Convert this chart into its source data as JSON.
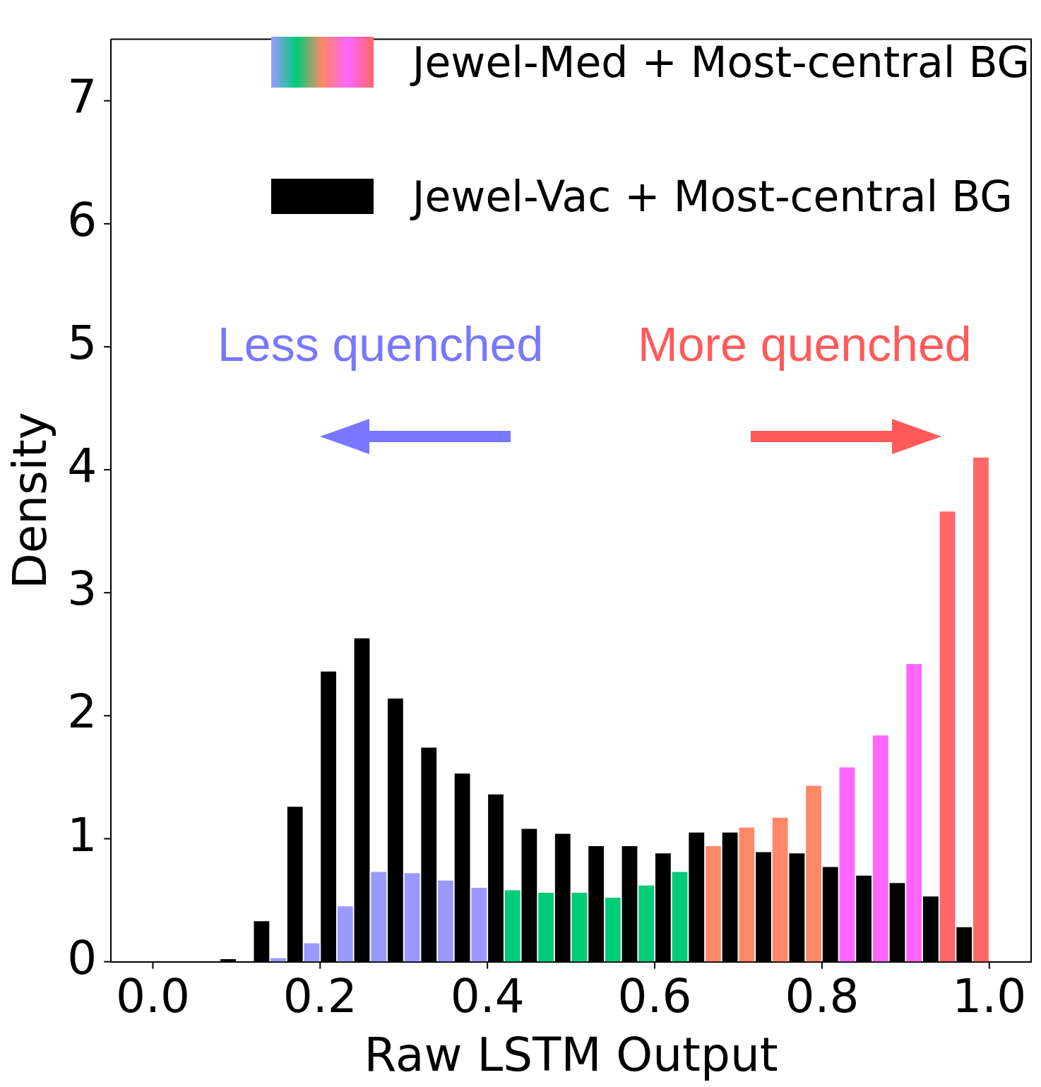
{
  "chart_data": {
    "type": "histogram",
    "xlabel": "Raw LSTM Output",
    "ylabel": "Density",
    "bins": [
      0,
      0.04,
      0.08,
      0.12,
      0.16,
      0.2,
      0.24,
      0.28,
      0.32,
      0.36,
      0.4,
      0.44,
      0.48,
      0.52,
      0.56,
      0.6,
      0.64,
      0.68,
      0.72,
      0.76,
      0.8,
      0.84,
      0.88,
      0.92,
      0.96,
      1.0
    ],
    "series": [
      {
        "name": "Jewel-Vac + Most-central BG",
        "color": "#000000",
        "values": [
          0,
          0,
          0.02,
          0.33,
          1.26,
          2.36,
          2.63,
          2.14,
          1.74,
          1.53,
          1.36,
          1.08,
          1.04,
          0.94,
          0.94,
          0.88,
          1.05,
          1.05,
          0.89,
          0.88,
          0.77,
          0.7,
          0.64,
          0.53,
          0.28
        ]
      },
      {
        "name": "Jewel-Med + Most-central BG",
        "colors": [
          "#9999ff",
          "#9999ff",
          "#9999ff",
          "#9999ff",
          "#9999ff",
          "#9999ff",
          "#9999ff",
          "#9999ff",
          "#9999ff",
          "#9999ff",
          "#00cc77",
          "#00cc77",
          "#00cc77",
          "#00cc77",
          "#00cc77",
          "#00cc77",
          "#ff8866",
          "#ff8866",
          "#ff8866",
          "#ff8866",
          "#ff66ff",
          "#ff66ff",
          "#ff66ff",
          "#ff6666",
          "#ff6666"
        ],
        "values": [
          0,
          0,
          0,
          0.03,
          0.15,
          0.45,
          0.73,
          0.72,
          0.66,
          0.6,
          0.58,
          0.56,
          0.56,
          0.52,
          0.62,
          0.73,
          0.94,
          1.09,
          1.17,
          1.43,
          1.58,
          1.84,
          2.42,
          3.66,
          4.1
        ]
      }
    ],
    "xlim": [
      -0.05,
      1.05
    ],
    "xticks": [
      {
        "value": 0,
        "label": "0.0"
      },
      {
        "value": 0.2,
        "label": "0.2"
      },
      {
        "value": 0.4,
        "label": "0.4"
      },
      {
        "value": 0.6,
        "label": "0.6"
      },
      {
        "value": 0.8,
        "label": "0.8"
      },
      {
        "value": 1,
        "label": "1.0"
      }
    ],
    "ylim": [
      0,
      7.5
    ],
    "yticks": [
      0,
      1,
      2,
      3,
      4,
      5,
      6,
      7
    ],
    "grid": false,
    "legend": "top right",
    "annotations": [
      "Less quenched",
      "More quenched"
    ]
  }
}
